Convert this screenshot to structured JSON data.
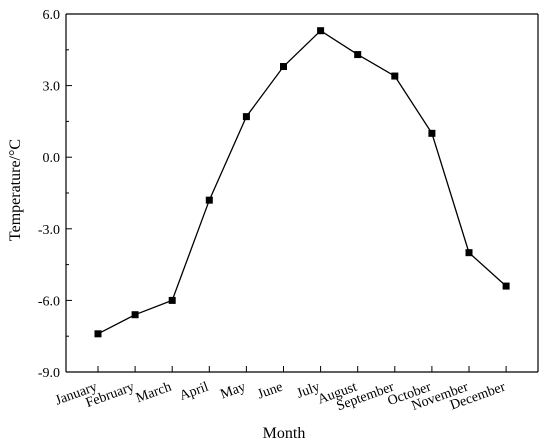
{
  "chart_data": {
    "type": "line",
    "title": "",
    "xlabel": "Month",
    "ylabel": "Temperature/°C",
    "categories": [
      "January",
      "February",
      "March",
      "April",
      "May",
      "June",
      "July",
      "August",
      "September",
      "October",
      "November",
      "December"
    ],
    "series": [
      {
        "values": [
          -7.4,
          -6.6,
          -6.0,
          -1.8,
          1.7,
          3.8,
          5.3,
          4.3,
          3.4,
          1.0,
          -4.0,
          -5.4
        ],
        "color": "#000000",
        "marker": "square"
      }
    ],
    "ylim": [
      -9.0,
      6.0
    ],
    "yticks": [
      "6.0",
      "3.0",
      "0.0",
      "-3.0",
      "-6.0",
      "-9.0"
    ],
    "grid": false,
    "legend": "none"
  }
}
